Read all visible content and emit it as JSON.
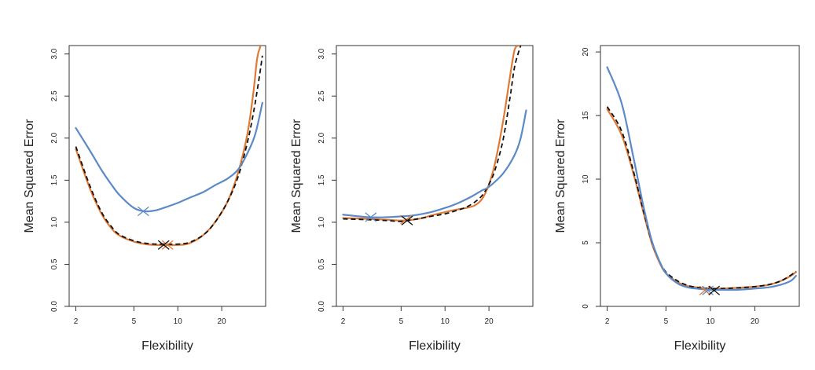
{
  "colors": {
    "test_true": "#e07a35",
    "training": "#5b8ac7",
    "test_cv": "#111111",
    "axis": "#333333"
  },
  "chart_data": [
    {
      "type": "line",
      "xlabel": "Flexibility",
      "ylabel": "Mean Squared Error",
      "x_scale": "log",
      "xlim": [
        1.8,
        40
      ],
      "ylim": [
        0.0,
        3.1
      ],
      "x_ticks": [
        2,
        5,
        10,
        20
      ],
      "x_tick_labels": [
        "2",
        "5",
        "10",
        "20"
      ],
      "y_ticks": [
        0.0,
        0.5,
        1.0,
        1.5,
        2.0,
        2.5,
        3.0
      ],
      "y_tick_labels": [
        "0.0",
        "0.5",
        "1.0",
        "1.5",
        "2.0",
        "2.5",
        "3.0"
      ],
      "grid": false,
      "series": [
        {
          "key": "true",
          "style": "solid",
          "color": "test_true",
          "x": [
            2,
            2.5,
            3,
            3.5,
            4,
            5,
            6,
            7,
            8,
            10,
            12,
            15,
            18,
            22,
            26,
            30,
            33,
            35,
            37
          ],
          "y": [
            1.87,
            1.4,
            1.1,
            0.93,
            0.84,
            0.77,
            0.74,
            0.73,
            0.73,
            0.73,
            0.75,
            0.85,
            1.0,
            1.25,
            1.6,
            2.05,
            2.55,
            2.95,
            3.1
          ]
        },
        {
          "key": "cv",
          "style": "dashed",
          "color": "test_cv",
          "x": [
            2,
            2.5,
            3,
            3.5,
            4,
            5,
            6,
            7,
            8,
            10,
            12,
            15,
            18,
            22,
            26,
            30,
            33,
            36,
            38
          ],
          "y": [
            1.9,
            1.43,
            1.12,
            0.95,
            0.85,
            0.78,
            0.75,
            0.74,
            0.74,
            0.74,
            0.76,
            0.85,
            1.0,
            1.25,
            1.55,
            1.95,
            2.3,
            2.7,
            2.98
          ]
        },
        {
          "key": "train",
          "style": "solid",
          "color": "training",
          "x": [
            2,
            2.5,
            3,
            3.5,
            4,
            5,
            6,
            7,
            8,
            10,
            12,
            15,
            18,
            22,
            26,
            30,
            34,
            38
          ],
          "y": [
            2.12,
            1.85,
            1.62,
            1.45,
            1.32,
            1.17,
            1.13,
            1.14,
            1.17,
            1.23,
            1.29,
            1.36,
            1.44,
            1.52,
            1.63,
            1.82,
            2.05,
            2.42
          ]
        }
      ],
      "markers": [
        {
          "x": 5.8,
          "y": 1.13,
          "color": "training"
        },
        {
          "x": 8.5,
          "y": 0.73,
          "color": "test_true"
        },
        {
          "x": 8.0,
          "y": 0.73,
          "color": "test_cv"
        }
      ]
    },
    {
      "type": "line",
      "xlabel": "Flexibility",
      "ylabel": "Mean Squared Error",
      "x_scale": "log",
      "xlim": [
        1.8,
        40
      ],
      "ylim": [
        0.0,
        3.1
      ],
      "x_ticks": [
        2,
        5,
        10,
        20
      ],
      "x_tick_labels": [
        "2",
        "5",
        "10",
        "20"
      ],
      "y_ticks": [
        0.0,
        0.5,
        1.0,
        1.5,
        2.0,
        2.5,
        3.0
      ],
      "y_tick_labels": [
        "0.0",
        "0.5",
        "1.0",
        "1.5",
        "2.0",
        "2.5",
        "3.0"
      ],
      "grid": false,
      "series": [
        {
          "key": "true",
          "style": "solid",
          "color": "test_true",
          "x": [
            2,
            3,
            4,
            5,
            6,
            7,
            8,
            10,
            12,
            14,
            16,
            18,
            20,
            22,
            25,
            28,
            30,
            32
          ],
          "y": [
            1.05,
            1.04,
            1.03,
            1.02,
            1.03,
            1.05,
            1.08,
            1.12,
            1.15,
            1.17,
            1.2,
            1.28,
            1.45,
            1.7,
            2.2,
            2.75,
            3.05,
            3.1
          ]
        },
        {
          "key": "cv",
          "style": "dashed",
          "color": "test_cv",
          "x": [
            2,
            3,
            4,
            5,
            6,
            7,
            8,
            10,
            12,
            14,
            16,
            18,
            20,
            22,
            25,
            28,
            30,
            33
          ],
          "y": [
            1.04,
            1.03,
            1.02,
            1.01,
            1.03,
            1.05,
            1.07,
            1.1,
            1.14,
            1.18,
            1.24,
            1.32,
            1.45,
            1.62,
            1.98,
            2.5,
            2.85,
            3.1
          ]
        },
        {
          "key": "train",
          "style": "solid",
          "color": "training",
          "x": [
            2,
            3,
            4,
            5,
            6,
            8,
            10,
            12,
            15,
            18,
            20,
            25,
            30,
            33,
            36
          ],
          "y": [
            1.09,
            1.06,
            1.06,
            1.07,
            1.08,
            1.12,
            1.17,
            1.22,
            1.3,
            1.38,
            1.42,
            1.58,
            1.8,
            2.0,
            2.33
          ]
        }
      ],
      "markers": [
        {
          "x": 3.1,
          "y": 1.06,
          "color": "training"
        },
        {
          "x": 5.4,
          "y": 1.03,
          "color": "test_true"
        },
        {
          "x": 5.5,
          "y": 1.02,
          "color": "test_cv"
        }
      ]
    },
    {
      "type": "line",
      "xlabel": "Flexibility",
      "ylabel": "Mean Squared Error",
      "x_scale": "log",
      "xlim": [
        1.8,
        40
      ],
      "ylim": [
        0,
        20.5
      ],
      "x_ticks": [
        2,
        5,
        10,
        20
      ],
      "x_tick_labels": [
        "2",
        "5",
        "10",
        "20"
      ],
      "y_ticks": [
        0,
        5,
        10,
        15,
        20
      ],
      "y_tick_labels": [
        "0",
        "5",
        "10",
        "15",
        "20"
      ],
      "grid": false,
      "series": [
        {
          "key": "true",
          "style": "solid",
          "color": "test_true",
          "x": [
            2,
            2.5,
            3,
            3.5,
            4,
            4.5,
            5,
            6,
            7,
            8,
            10,
            12,
            15,
            20,
            25,
            30,
            35,
            38
          ],
          "y": [
            15.5,
            13.5,
            10.5,
            7.5,
            5.0,
            3.5,
            2.6,
            1.9,
            1.6,
            1.5,
            1.4,
            1.4,
            1.45,
            1.55,
            1.7,
            2.0,
            2.4,
            2.7
          ]
        },
        {
          "key": "cv",
          "style": "dashed",
          "color": "test_cv",
          "x": [
            2,
            2.5,
            3,
            3.5,
            4,
            4.5,
            5,
            6,
            7,
            8,
            10,
            12,
            15,
            20,
            25,
            30,
            35,
            38
          ],
          "y": [
            15.7,
            13.8,
            10.7,
            7.6,
            5.1,
            3.6,
            2.7,
            2.0,
            1.65,
            1.5,
            1.4,
            1.4,
            1.45,
            1.55,
            1.72,
            2.0,
            2.45,
            2.75
          ]
        },
        {
          "key": "train",
          "style": "solid",
          "color": "training",
          "x": [
            2,
            2.5,
            3,
            3.5,
            4,
            4.5,
            5,
            6,
            7,
            8,
            10,
            12,
            15,
            20,
            25,
            30,
            35,
            38
          ],
          "y": [
            18.8,
            16.0,
            11.8,
            8.0,
            5.2,
            3.6,
            2.6,
            1.8,
            1.5,
            1.4,
            1.3,
            1.3,
            1.3,
            1.4,
            1.5,
            1.7,
            2.0,
            2.4
          ]
        }
      ],
      "markers": [
        {
          "x": 9.2,
          "y": 1.25,
          "color": "test_true"
        },
        {
          "x": 9.6,
          "y": 1.25,
          "color": "training"
        },
        {
          "x": 10.6,
          "y": 1.25,
          "color": "test_cv"
        }
      ]
    }
  ]
}
